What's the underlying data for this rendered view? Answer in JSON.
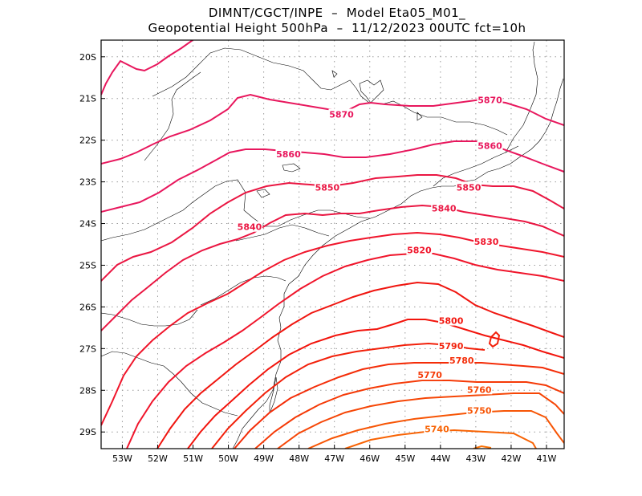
{
  "header": {
    "line1": "DIMNT/CGCT/INPE  –  Model Eta05_M01_",
    "line2": "Geopotential Height 500hPa  –  11/12/2023 00UTC fct=10h"
  },
  "axes": {
    "lon_min": -53.6,
    "lon_max": -40.5,
    "lat_min": -29.4,
    "lat_max": -19.6,
    "x_ticks": [
      {
        "lon": -53,
        "label": "53W"
      },
      {
        "lon": -52,
        "label": "52W"
      },
      {
        "lon": -51,
        "label": "51W"
      },
      {
        "lon": -50,
        "label": "50W"
      },
      {
        "lon": -49,
        "label": "49W"
      },
      {
        "lon": -48,
        "label": "48W"
      },
      {
        "lon": -47,
        "label": "47W"
      },
      {
        "lon": -46,
        "label": "46W"
      },
      {
        "lon": -45,
        "label": "45W"
      },
      {
        "lon": -44,
        "label": "44W"
      },
      {
        "lon": -43,
        "label": "43W"
      },
      {
        "lon": -42,
        "label": "42W"
      },
      {
        "lon": -41,
        "label": "41W"
      }
    ],
    "y_ticks": [
      {
        "lat": -20,
        "label": "20S"
      },
      {
        "lat": -21,
        "label": "21S"
      },
      {
        "lat": -22,
        "label": "22S"
      },
      {
        "lat": -23,
        "label": "23S"
      },
      {
        "lat": -24,
        "label": "24S"
      },
      {
        "lat": -25,
        "label": "25S"
      },
      {
        "lat": -26,
        "label": "26S"
      },
      {
        "lat": -27,
        "label": "27S"
      },
      {
        "lat": -28,
        "label": "28S"
      },
      {
        "lat": -29,
        "label": "29S"
      }
    ],
    "grid": "dotted"
  },
  "contour_labels": [
    {
      "text": "5870",
      "lon": -46.8,
      "lat": -21.4,
      "color": "#e8175d"
    },
    {
      "text": "5870",
      "lon": -42.6,
      "lat": -21.05,
      "color": "#e8175d"
    },
    {
      "text": "5860",
      "lon": -48.3,
      "lat": -22.35,
      "color": "#e8175d"
    },
    {
      "text": "5860",
      "lon": -42.6,
      "lat": -22.15,
      "color": "#e8175d"
    },
    {
      "text": "5850",
      "lon": -47.2,
      "lat": -23.15,
      "color": "#ea1642"
    },
    {
      "text": "5850",
      "lon": -43.2,
      "lat": -23.15,
      "color": "#ea1642"
    },
    {
      "text": "5840",
      "lon": -49.4,
      "lat": -24.1,
      "color": "#ea1642"
    },
    {
      "text": "5840",
      "lon": -43.9,
      "lat": -23.65,
      "color": "#ea1642"
    },
    {
      "text": "5830",
      "lon": -42.7,
      "lat": -24.45,
      "color": "#f0152b"
    },
    {
      "text": "5820",
      "lon": -44.6,
      "lat": -24.65,
      "color": "#f0152b"
    },
    {
      "text": "5800",
      "lon": -43.7,
      "lat": -26.35,
      "color": "#f2140c"
    },
    {
      "text": "5790",
      "lon": -43.7,
      "lat": -26.95,
      "color": "#f2200a"
    },
    {
      "text": "5780",
      "lon": -43.4,
      "lat": -27.3,
      "color": "#f42d08"
    },
    {
      "text": "5770",
      "lon": -44.3,
      "lat": -27.65,
      "color": "#f53a07"
    },
    {
      "text": "5760",
      "lon": -42.9,
      "lat": -28.0,
      "color": "#f64606"
    },
    {
      "text": "5750",
      "lon": -42.9,
      "lat": -28.5,
      "color": "#f75505"
    },
    {
      "text": "5740",
      "lon": -44.1,
      "lat": -28.95,
      "color": "#f86304"
    }
  ],
  "colors": {
    "5870": "#e8175d",
    "5860": "#e8175d",
    "5850": "#ea1642",
    "5840": "#ea1642",
    "5830": "#f0152b",
    "5820": "#f0152b",
    "5810": "#f0150f",
    "5800": "#f2140c",
    "5790": "#f2200a",
    "5780": "#f42d08",
    "5770": "#f53a07",
    "5760": "#f64606",
    "5750": "#f75505",
    "5740": "#f86304",
    "5730": "#f97104"
  }
}
